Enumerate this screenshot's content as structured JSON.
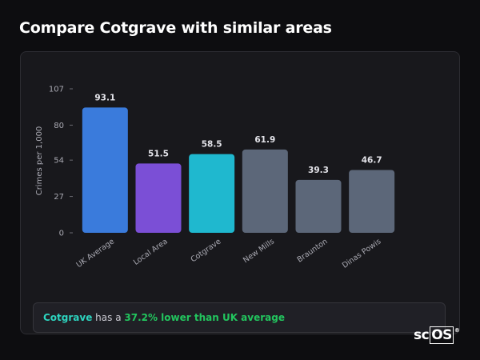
{
  "page": {
    "title": "Compare Cotgrave with similar areas"
  },
  "chart_data": {
    "type": "bar",
    "categories": [
      "UK Average",
      "Local Area",
      "Cotgrave",
      "New Mills",
      "Braunton",
      "Dinas Powis"
    ],
    "values": [
      93.1,
      51.5,
      58.5,
      61.9,
      39.3,
      46.7
    ],
    "value_labels": [
      "93.1",
      "51.5",
      "58.5",
      "61.9",
      "39.3",
      "46.7"
    ],
    "colors": [
      "#3a7bdc",
      "#7b4fd6",
      "#1fb8cf",
      "#5c6779",
      "#5c6779",
      "#5c6779"
    ],
    "ylabel": "Crimes per 1,000",
    "xlabel": "",
    "yticks": [
      0,
      27,
      54,
      80,
      107
    ],
    "ylim": [
      0,
      107
    ],
    "grid": false,
    "legend": "none",
    "x_tick_rotation": -35
  },
  "summary": {
    "place": "Cotgrave",
    "middle": " has a ",
    "stat": "37.2% lower than UK average"
  },
  "logo": {
    "prefix": "sc",
    "boxed": "OS",
    "mark": "®"
  }
}
